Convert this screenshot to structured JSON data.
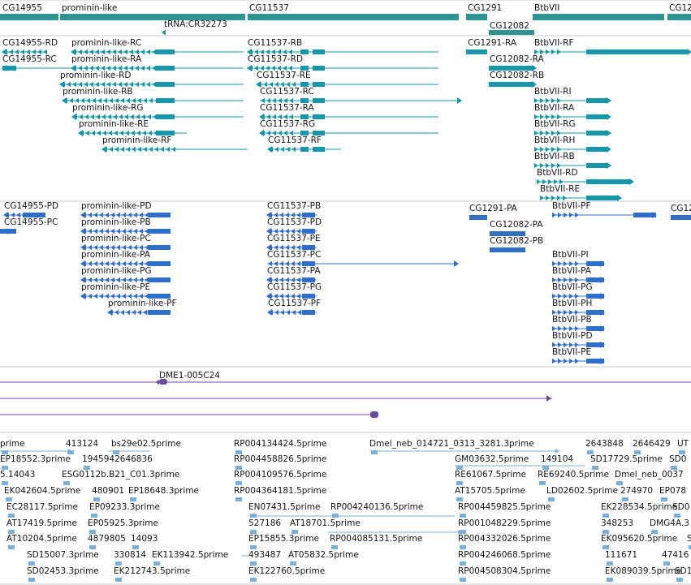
{
  "colors": {
    "gene": "#2e9393",
    "transcript_a": "#1497aa",
    "transcript_b": "#2f6ec8",
    "clone": "#6a4a9e",
    "est": "#7ab0d8",
    "text": "#141414",
    "separator": "#c8c8c8"
  },
  "gene_track": [
    {
      "id": "g1",
      "label": "CG14955",
      "glyph": "box"
    },
    {
      "id": "g2",
      "label": "prominin-like",
      "glyph": "box"
    },
    {
      "id": "g3",
      "label": "tRNA:CR32273",
      "glyph": "arrow-left"
    },
    {
      "id": "g4",
      "label": "CG11537",
      "glyph": "box"
    },
    {
      "id": "g5",
      "label": "CG1291",
      "glyph": "box"
    },
    {
      "id": "g6",
      "label": "CG12082",
      "glyph": "box"
    },
    {
      "id": "g7",
      "label": "BtbVII",
      "glyph": "box"
    },
    {
      "id": "g8",
      "label": "CG12",
      "glyph": "box"
    }
  ],
  "transcripts_r": [
    "CG14955-RD",
    "CG14955-RC",
    "prominin-like-RC",
    "prominin-like-RA",
    "prominin-like-RD",
    "prominin-like-RB",
    "prominin-like-RG",
    "prominin-like-RE",
    "prominin-like-RF",
    "CG11537-RB",
    "CG11537-RD",
    "CG11537-RE",
    "CG11537-RC",
    "CG11537-RA",
    "CG11537-RG",
    "CG11537-RF",
    "CG1291-RA",
    "CG12082-RA",
    "CG12082-RB",
    "BtbVII-RF",
    "BtbVII-RI",
    "BtbVII-RA",
    "BtbVII-RG",
    "BtbVII-RH",
    "BtbVII-RB",
    "BtbVII-RD",
    "BtbVII-RE"
  ],
  "transcripts_p": [
    "CG14955-PD",
    "CG14955-PC",
    "prominin-like-PD",
    "prominin-like-PB",
    "prominin-like-PC",
    "prominin-like-PA",
    "prominin-like-PG",
    "prominin-like-PE",
    "prominin-like-PF",
    "CG11537-PB",
    "CG11537-PD",
    "CG11537-PE",
    "CG11537-PC",
    "CG11537-PA",
    "CG11537-PG",
    "CG11537-PF",
    "CG1291-PA",
    "CG12082-PA",
    "CG12082-PB",
    "BtbVII-PF",
    "BtbVII-PI",
    "BtbVII-PA",
    "BtbVII-PG",
    "BtbVII-PH",
    "BtbVII-PB",
    "BtbVII-PD",
    "BtbVII-PE"
  ],
  "clone_track": [
    "DME1-005C24"
  ],
  "est_track": [
    "prime",
    "413124",
    "bs29e02.5prime",
    "RP004134424.5prime",
    "Dmel_neb_014721_0313_3281.3prime",
    "2643848",
    "2646429",
    "UT",
    "EP18552.3prime",
    "1945942646836",
    "RP004458826.5prime",
    "GM03632.5prime",
    "149104",
    "SD17729.5prime",
    "SD0",
    "5.14043",
    "ESG0112b.B21_C01.3prime",
    "RP004109576.5prime",
    "RE61067.5prime",
    "RE69240.5prime",
    "Dmel_neb_0037",
    "EK042604.5prime",
    "480901",
    "EP18648.3prime",
    "RP004364181.5prime",
    "AT15705.5prime",
    "LD02602.5prime",
    "274970",
    "EP078",
    "EC28117.5prime",
    "EP09233.3prime",
    "EN07431.5prime",
    "RP004240136.5prime",
    "RP004459825.5prime",
    "EK228534.5prime",
    "SD0",
    "AT17419.5prime",
    "EP05925.3prime",
    "527186",
    "AT18701.5prime",
    "RP001048229.5prime",
    "348253",
    "DMG4A.3",
    "AT10204.5prime",
    "4879805",
    "14093",
    "EP15855.3prime",
    "RP004085131.5prime",
    "RP004332026.5prime",
    "EK095620.5prime",
    "S",
    "SD15007.3prime",
    "330814",
    "EK113942.5prime",
    "493487",
    "AT05832.5prime",
    "RP004246068.5prime",
    "111671",
    "47416",
    "SD02453.3prime",
    "EK212743.5prime",
    "EK122760.5prime",
    "RP004508304.5prime",
    "EK089039.5prime",
    "SD1"
  ]
}
